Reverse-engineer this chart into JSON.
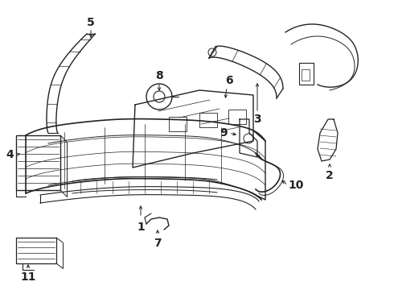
{
  "bg_color": "#ffffff",
  "line_color": "#222222",
  "label_color": "#000000",
  "label_fontsize": 10,
  "figw": 4.9,
  "figh": 3.6,
  "dpi": 100
}
